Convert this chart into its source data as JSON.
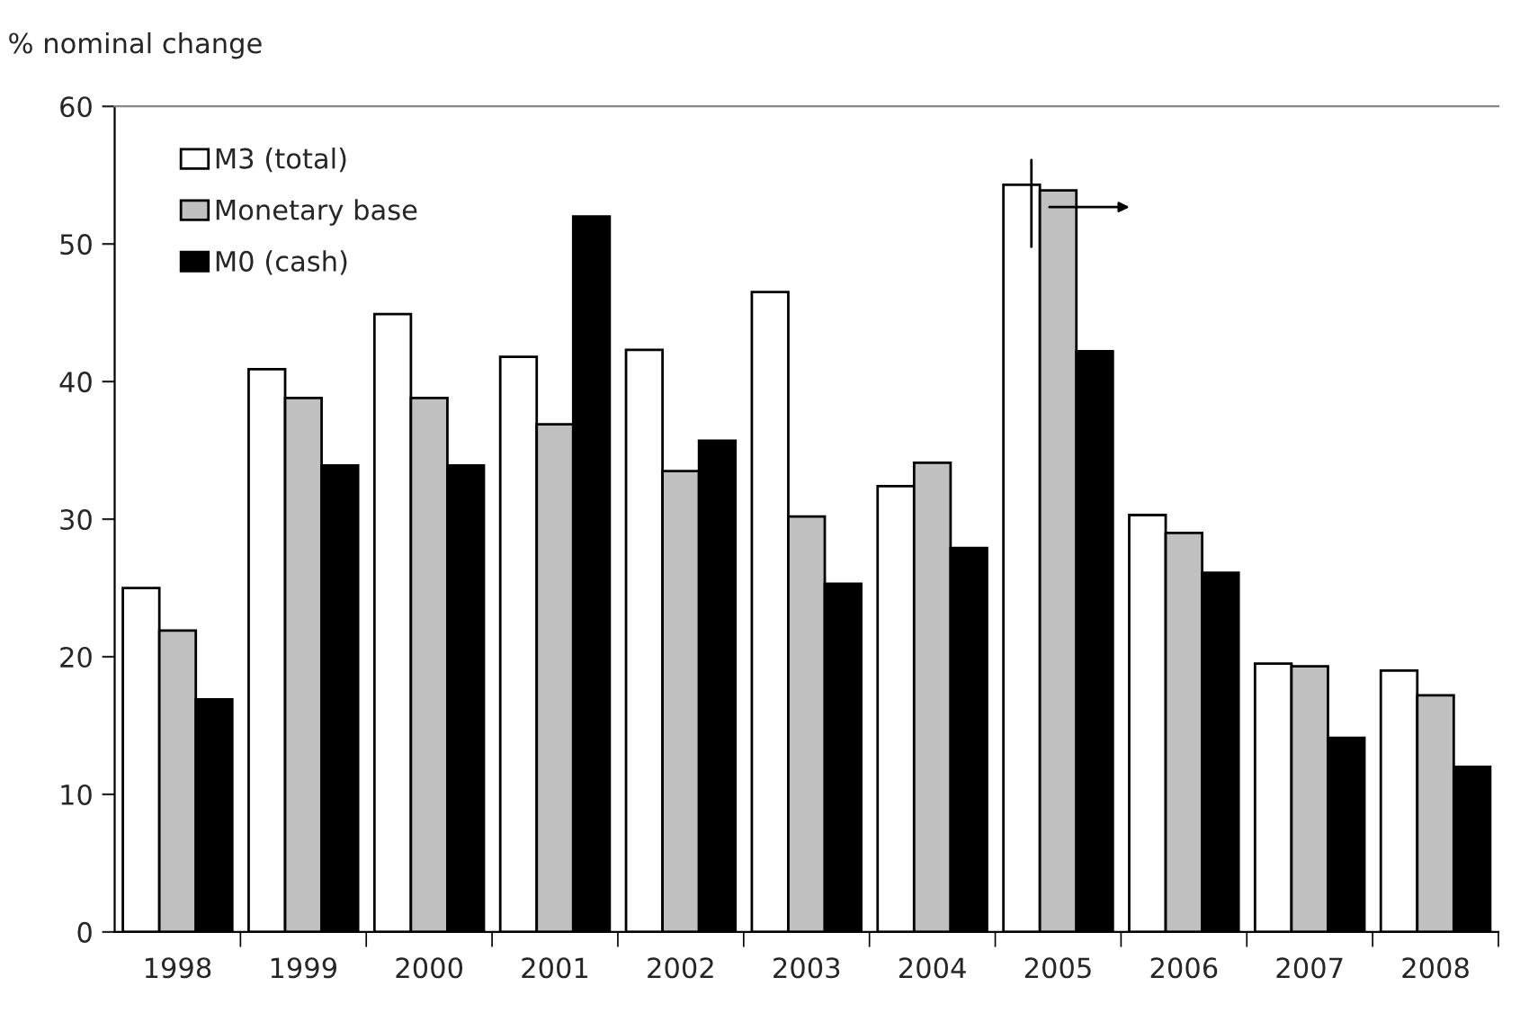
{
  "chart_data": {
    "type": "bar",
    "ylabel": "% nominal change",
    "categories": [
      "1998",
      "1999",
      "2000",
      "2001",
      "2002",
      "2003",
      "2004",
      "2005",
      "2006",
      "2007",
      "2008"
    ],
    "series": [
      {
        "name": "M3 (total)",
        "color": "#ffffff",
        "values": [
          25.0,
          40.9,
          44.9,
          41.8,
          42.3,
          46.5,
          32.4,
          54.3,
          30.3,
          19.5,
          19.0
        ]
      },
      {
        "name": "Monetary base",
        "color": "#c0c0c0",
        "values": [
          21.9,
          38.8,
          38.8,
          36.9,
          33.5,
          30.2,
          34.1,
          53.9,
          29.0,
          19.3,
          17.2
        ]
      },
      {
        "name": "M0 (cash)",
        "color": "#000000",
        "values": [
          16.9,
          33.9,
          33.9,
          52.0,
          35.7,
          25.3,
          27.9,
          42.2,
          26.1,
          14.1,
          12.0
        ]
      }
    ],
    "ylim": [
      0,
      60
    ],
    "yticks": [
      0,
      10,
      20,
      30,
      40,
      50,
      60
    ],
    "grid": false,
    "legend": "top left"
  }
}
